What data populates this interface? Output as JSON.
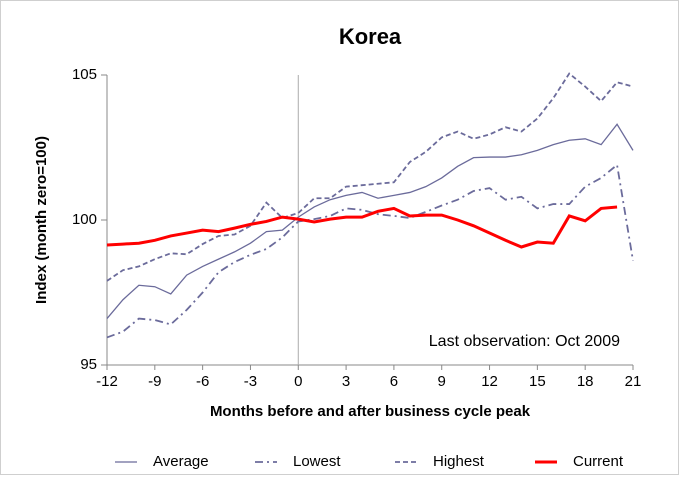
{
  "chart_data": {
    "type": "line",
    "title": "Korea",
    "x_label": "Months before and after business cycle peak",
    "y_label": "Index (month zero=100)",
    "annotation": "Last observation: Oct 2009",
    "x": [
      -12,
      -11,
      -10,
      -9,
      -8,
      -7,
      -6,
      -5,
      -4,
      -3,
      -2,
      -1,
      0,
      1,
      2,
      3,
      4,
      5,
      6,
      7,
      8,
      9,
      10,
      11,
      12,
      13,
      14,
      15,
      16,
      17,
      18,
      19,
      20,
      21
    ],
    "xlim": [
      -12,
      21
    ],
    "xticks": [
      -12,
      -9,
      -6,
      -3,
      0,
      3,
      6,
      9,
      12,
      15,
      18,
      21
    ],
    "ylim": [
      95,
      105
    ],
    "yticks": [
      95,
      100,
      105
    ],
    "reference_x": 0,
    "legend": "bottom",
    "series": [
      {
        "name": "Average",
        "color": "#6b6b9b",
        "style": "solid",
        "values": [
          96.6,
          97.25,
          97.75,
          97.7,
          97.45,
          98.1,
          98.4,
          98.65,
          98.9,
          99.2,
          99.6,
          99.65,
          100.1,
          100.45,
          100.7,
          100.85,
          100.95,
          100.75,
          100.85,
          100.95,
          101.15,
          101.45,
          101.85,
          102.15,
          102.17,
          102.17,
          102.25,
          102.4,
          102.6,
          102.75,
          102.8,
          102.6,
          103.3,
          102.4
        ]
      },
      {
        "name": "Lowest",
        "color": "#6b6b9b",
        "style": "dashdot",
        "values": [
          95.95,
          96.15,
          96.6,
          96.55,
          96.4,
          96.9,
          97.5,
          98.2,
          98.55,
          98.8,
          99.0,
          99.4,
          99.95,
          100.03,
          100.14,
          100.4,
          100.35,
          100.2,
          100.14,
          100.07,
          100.28,
          100.5,
          100.7,
          101.0,
          101.1,
          100.7,
          100.8,
          100.4,
          100.55,
          100.55,
          101.15,
          101.45,
          101.9,
          98.6
        ]
      },
      {
        "name": "Highest",
        "color": "#6b6b9b",
        "style": "dashed",
        "values": [
          97.9,
          98.27,
          98.4,
          98.65,
          98.85,
          98.82,
          99.17,
          99.45,
          99.5,
          99.8,
          100.6,
          100.07,
          100.24,
          100.75,
          100.75,
          101.15,
          101.2,
          101.25,
          101.3,
          102.0,
          102.35,
          102.85,
          103.05,
          102.8,
          102.95,
          103.2,
          103.05,
          103.5,
          104.2,
          105.05,
          104.6,
          104.1,
          104.75,
          104.6
        ]
      },
      {
        "name": "Current",
        "color": "#ff0000",
        "style": "thick",
        "values": [
          99.14,
          99.17,
          99.2,
          99.3,
          99.45,
          99.55,
          99.65,
          99.6,
          99.72,
          99.85,
          99.95,
          100.1,
          100.03,
          99.93,
          100.03,
          100.1,
          100.1,
          100.3,
          100.4,
          100.14,
          100.17,
          100.17,
          100.0,
          99.8,
          99.55,
          99.3,
          99.07,
          99.24,
          99.2,
          100.14,
          99.97,
          100.4,
          100.45,
          null
        ]
      }
    ]
  }
}
